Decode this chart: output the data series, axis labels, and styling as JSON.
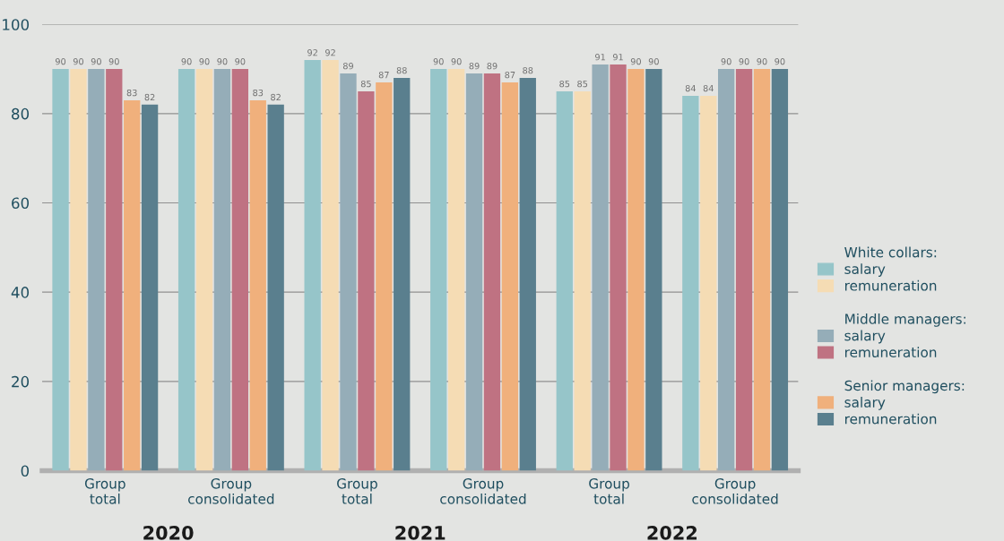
{
  "chart_data": {
    "type": "bar",
    "categories": [
      "Group\ntotal",
      "Group\nconsolidated",
      "Group\ntotal",
      "Group\nconsolidated",
      "Group\ntotal",
      "Group\nconsolidated"
    ],
    "series": [
      {
        "name": "salary",
        "color": "#96c5c9",
        "values": [
          90,
          90,
          92,
          90,
          85,
          84
        ]
      },
      {
        "name": "remuneration",
        "color": "#f5dcb4",
        "values": [
          90,
          90,
          92,
          90,
          85,
          84
        ]
      },
      {
        "name": "salary",
        "color": "#95adb8",
        "values": [
          90,
          90,
          89,
          89,
          91,
          90
        ]
      },
      {
        "name": "remuneration",
        "color": "#bf7282",
        "values": [
          90,
          90,
          85,
          89,
          91,
          90
        ]
      },
      {
        "name": "salary",
        "color": "#f0b07c",
        "values": [
          83,
          83,
          87,
          87,
          90,
          90
        ]
      },
      {
        "name": "remuneration",
        "color": "#5a7f8e",
        "values": [
          82,
          82,
          88,
          88,
          90,
          90
        ]
      }
    ],
    "annotations": [
      "White collars:",
      "Middle managers:",
      "Senior managers:",
      "2020",
      "2021",
      "2022"
    ],
    "ylim": [
      0,
      100
    ],
    "yticks": [
      0,
      20,
      40,
      60,
      80,
      100
    ],
    "grid": "y",
    "legend": "right",
    "data_labels": true
  }
}
